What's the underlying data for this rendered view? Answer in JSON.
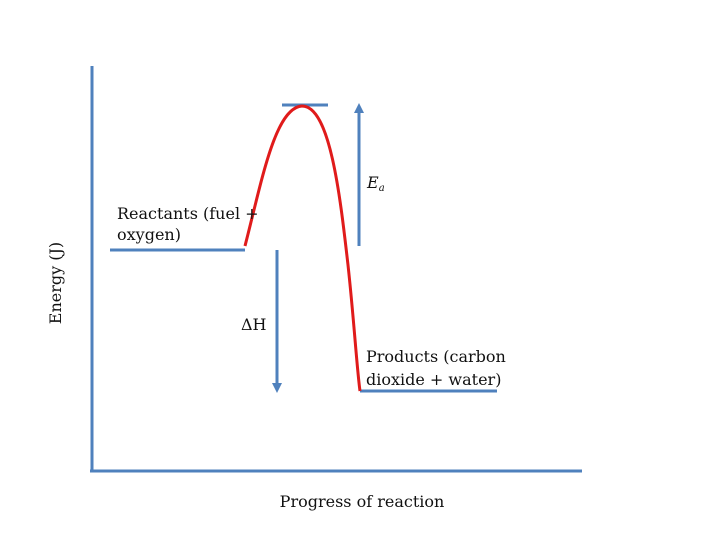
{
  "diagram": {
    "y_axis_label": "Energy (J)",
    "x_axis_label": "Progress of reaction",
    "reactants_label_line1": "Reactants (fuel +",
    "reactants_label_line2": "oxygen)",
    "products_label_line1": "Products (carbon",
    "products_label_line2": "dioxide + water)",
    "activation_energy_symbol": "E",
    "activation_energy_subscript": "a",
    "enthalpy_change_label": "ΔH"
  },
  "colors": {
    "axis": "#4f81bd",
    "curve": "#e01b1b",
    "text": "#111111"
  }
}
